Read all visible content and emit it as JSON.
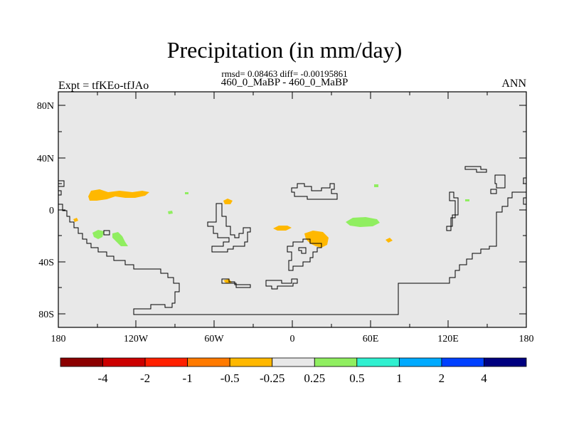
{
  "title": "Precipitation (in mm/day)",
  "stats": "rmsd= 0.08463 diff= -0.00195861",
  "comparison": "460_0_MaBP - 460_0_MaBP",
  "experiment": "Expt = tfKEo-tfJAo",
  "period": "ANN",
  "lat_ticks": [
    "80N",
    "40N",
    "0",
    "40S",
    "80S"
  ],
  "lon_ticks": [
    "180",
    "120W",
    "60W",
    "0",
    "60E",
    "120E",
    "180"
  ],
  "colorbar": {
    "labels": [
      "-4",
      "-2",
      "-1",
      "-0.5",
      "-0.25",
      "0.25",
      "0.5",
      "1",
      "2",
      "4"
    ],
    "colors": [
      "#8b0000",
      "#cc0000",
      "#ff2000",
      "#ff7a00",
      "#ffb800",
      "#e8e8e8",
      "#90ee60",
      "#30f0d0",
      "#00aaff",
      "#0040ff",
      "#000080"
    ]
  },
  "colors": {
    "background_field": "#e8e8e8",
    "neg_small": "#ffb800",
    "pos_small": "#90ee60"
  },
  "chart_data": {
    "type": "heatmap",
    "title": "Precipitation (in mm/day)",
    "xlim": [
      -180,
      180
    ],
    "ylim": [
      -90,
      90
    ],
    "contour_levels": [
      -4,
      -2,
      -1,
      -0.5,
      -0.25,
      0.25,
      0.5,
      1,
      2,
      4
    ],
    "anomaly_regions": [
      {
        "label": "-0.5 to -0.25",
        "lon": -140,
        "lat": 12
      },
      {
        "label": "-0.5 to -0.25",
        "lon": -50,
        "lat": 6
      },
      {
        "label": "-0.5 to -0.25",
        "lon": 20,
        "lat": -22
      },
      {
        "label": "-0.5 to -0.25",
        "lon": -20,
        "lat": -14
      },
      {
        "label": "0.25 to 0.5",
        "lon": -150,
        "lat": -18
      },
      {
        "label": "0.25 to 0.5",
        "lon": 55,
        "lat": -10
      }
    ]
  }
}
